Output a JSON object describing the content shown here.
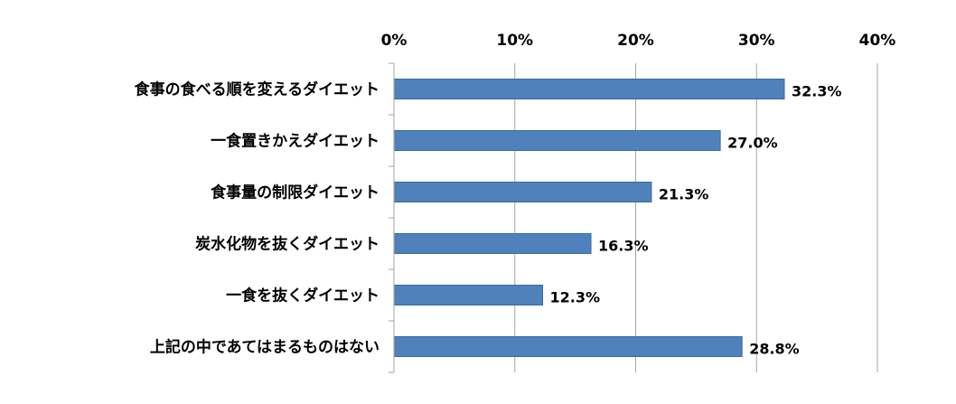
{
  "chart_data": {
    "type": "bar",
    "orientation": "horizontal",
    "categories": [
      "食事の食べる順を変えるダイエット",
      "一食置きかえダイエット",
      "食事量の制限ダイエット",
      "炭水化物を抜くダイエット",
      "一食を抜くダイエット",
      "上記の中であてはまるものはない"
    ],
    "values": [
      32.3,
      27.0,
      21.3,
      16.3,
      12.3,
      28.8
    ],
    "data_labels": [
      "32.3%",
      "27.0%",
      "21.3%",
      "16.3%",
      "12.3%",
      "28.8%"
    ],
    "xlim": [
      0,
      40
    ],
    "ticks": [
      0,
      10,
      20,
      30,
      40
    ],
    "tick_labels": [
      "0%",
      "10%",
      "20%",
      "30%",
      "40%"
    ],
    "x_axis_position": "top",
    "grid": true,
    "legend": "none",
    "title": "",
    "xlabel": "",
    "ylabel": "",
    "colors": {
      "bar": "#4f81bd",
      "bar_edge": "#3b6aa3",
      "grid": "#a6a6a6",
      "axis": "#a6a6a6",
      "text": "#000000"
    }
  }
}
